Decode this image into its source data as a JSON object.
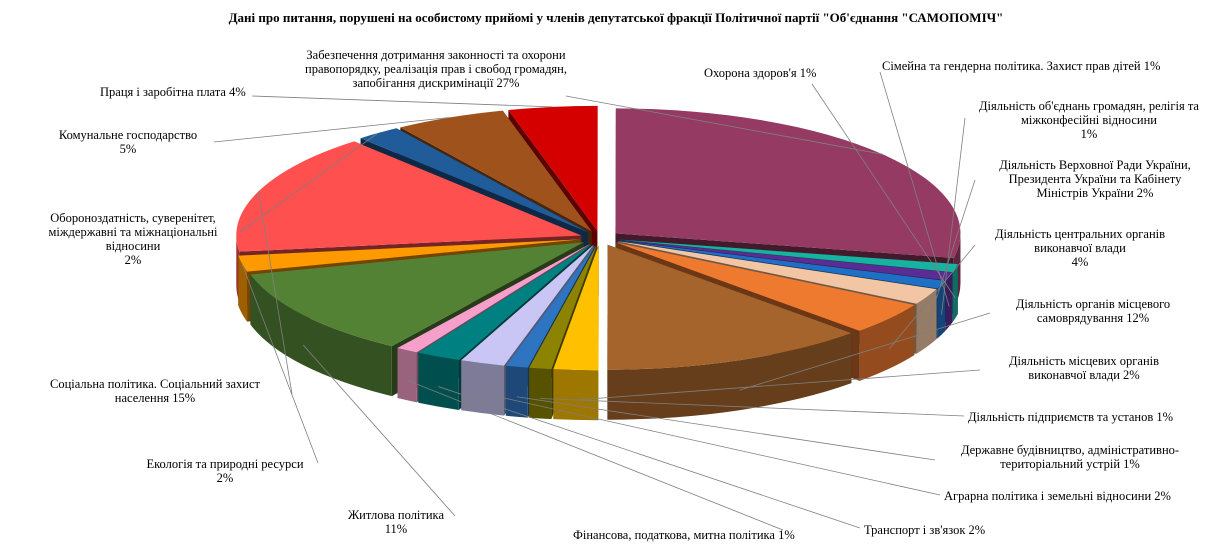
{
  "chart_data": {
    "type": "pie",
    "title": "Дані про питання, порушені на особистому прийомі у членів депутатської фракції Політичної партії \"Об'єднання \"САМОПОМІЧ\"",
    "unit": "%",
    "slices": [
      {
        "label": "Забезпечення дотримання законності та охорони правопорядку, реалізація прав і свобод громадян, запобігання дискримінації 27%",
        "value": 27,
        "color": "#953A62"
      },
      {
        "label": "Охорона здоров'я 1%",
        "value": 1,
        "color": "#18B2A0"
      },
      {
        "label": "Сімейна та гендерна політика. Захист прав дітей 1%",
        "value": 1,
        "color": "#5B2D94"
      },
      {
        "label": "Діяльність об'єднань громадян, релігія та міжконфесійні відносини 1%",
        "value": 1,
        "color": "#1F6FC5"
      },
      {
        "label": "Діяльність Верховної Ради України, Президента України та Кабінету Міністрів України 2%",
        "value": 2,
        "color": "#F2C6A5"
      },
      {
        "label": "Діяльність центральних органів виконавчої влади 4%",
        "value": 4,
        "color": "#EE7A30"
      },
      {
        "label": "Діяльність органів місцевого самоврядування 12%",
        "value": 12,
        "color": "#A5642B"
      },
      {
        "label": "Діяльність місцевих органів виконавчої влади 2%",
        "value": 2,
        "color": "#FFC000"
      },
      {
        "label": "Діяльність підприємств та установ 1%",
        "value": 1,
        "color": "#8C8400"
      },
      {
        "label": "Державне будівництво, адміністративно-територіальний устрій 1%",
        "value": 1,
        "color": "#2E74C0"
      },
      {
        "label": "Аграрна політика і земельні відносини 2%",
        "value": 2,
        "color": "#C9C6F5"
      },
      {
        "label": "Транспорт і зв'язок 2%",
        "value": 2,
        "color": "#008080"
      },
      {
        "label": "Фінансова, податкова, митна політика 1%",
        "value": 1,
        "color": "#F79FCB"
      },
      {
        "label": "Житлова політика 11%",
        "value": 11,
        "color": "#548235"
      },
      {
        "label": "Екологія та природні ресурси 2%",
        "value": 2,
        "color": "#FF9900"
      },
      {
        "label": "Соціальна політика. Соціальний захист населення 15%",
        "value": 15,
        "color": "#FF5050"
      },
      {
        "label": "Обороноздатність, суверенітет, міждержавні та міжнаціональні відносини 2%",
        "value": 2,
        "color": "#1F5C99"
      },
      {
        "label": "Комунальне господарство 5%",
        "value": 5,
        "color": "#A0521C"
      },
      {
        "label": "Праця і заробітна плата 4%",
        "value": 4,
        "color": "#D40000"
      }
    ],
    "legend": "none",
    "data_labels": "outside with leader lines"
  },
  "labels": {
    "l0": "Забезпечення дотримання законності та охорони\nправопорядку, реалізація прав і свобод громадян,\nзапобігання дискримінації 27%",
    "l1": "Охорона здоров'я 1%",
    "l2": "Сімейна та гендерна політика.  Захист  прав дітей  1%",
    "l3": "Діяльність  об'єднань громадян, релігія та\nміжконфесійні відносини\n1%",
    "l4": "Діяльність  Верховної  Ради України,\nПрезидента  України та Кабінету\nМіністрів  України 2%",
    "l5": "Діяльність  центральних органів\nвиконавчої влади\n4%",
    "l6": "Діяльність  органів місцевого\nсамоврядування 12%",
    "l7": "Діяльність  місцевих органів\nвиконавчої влади 2%",
    "l8": "Діяльність  підприємств та установ 1%",
    "l9": "Державне будівництво,  адміністративно-\nтериторіальний  устрій 1%",
    "l10": "Аграрна політика  і земельні відносини 2%",
    "l11": "Транспорт і зв'язок 2%",
    "l12": "Фінансова,  податкова,  митна політика  1%",
    "l13": "Житлова політика\n11%",
    "l14": "Екологія  та природні ресурси\n2%",
    "l15": "Соціальна політика.  Соціальний захист\nнаселення 15%",
    "l16": "Обороноздатність,  суверенітет,\nміждержавні та міжнаціональні\nвідносини\n2%",
    "l17": "Комунальне господарство\n5%",
    "l18": "Праця і заробітна плата 4%"
  }
}
